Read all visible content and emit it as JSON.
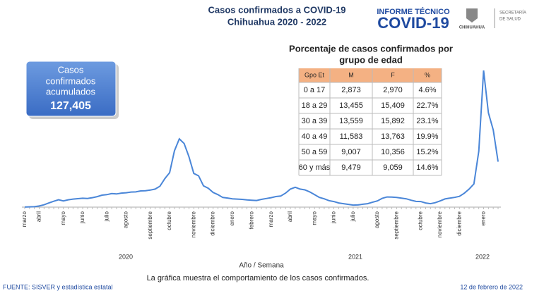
{
  "header": {
    "title": "Casos confirmados a COVID-19",
    "subtitle": "Chihuahua 2020 - 2022",
    "logo_top": "INFORME TÉCNICO",
    "logo_main": "COVID-19",
    "logo_state": "CHIHUAHUA",
    "logo_dept": [
      "SECRETARÍA",
      "DE SALUD"
    ]
  },
  "kpi": {
    "label": [
      "Casos",
      "confirmados",
      "acumulados"
    ],
    "value": "127,405"
  },
  "table": {
    "title": [
      "Porcentaje de casos confirmados por",
      "grupo de edad"
    ],
    "columns": [
      "Gpo Et",
      "M",
      "F",
      "%"
    ],
    "rows": [
      [
        "0 a 17",
        "2,873",
        "2,970",
        "4.6%"
      ],
      [
        "18 a 29",
        "13,455",
        "15,409",
        "22.7%"
      ],
      [
        "30 a 39",
        "13,559",
        "15,892",
        "23.1%"
      ],
      [
        "40 a 49",
        "11,583",
        "13,763",
        "19.9%"
      ],
      [
        "50 a 59",
        "9,007",
        "10,356",
        "15.2%"
      ],
      [
        "60 y más",
        "9,479",
        "9,059",
        "14.6%"
      ]
    ]
  },
  "chart_data": {
    "type": "line",
    "x_label": "Año / Semana",
    "color": "#4a86d8",
    "year_labels": [
      "2020",
      "2021",
      "2022"
    ],
    "categories": [
      "marzo",
      null,
      null,
      "abril",
      null,
      null,
      null,
      null,
      "mayo",
      null,
      null,
      null,
      "junio",
      null,
      null,
      null,
      null,
      "julio",
      null,
      null,
      null,
      "agosto",
      null,
      null,
      null,
      null,
      "septiembre",
      null,
      null,
      null,
      "octubre",
      null,
      null,
      null,
      null,
      "noviembre",
      null,
      null,
      null,
      "diciembre",
      null,
      null,
      null,
      "enero",
      null,
      null,
      null,
      "febrero",
      null,
      null,
      null,
      "marzo",
      null,
      null,
      null,
      "abril",
      null,
      null,
      null,
      null,
      "mayo",
      null,
      null,
      null,
      "junio",
      null,
      null,
      null,
      "julio",
      null,
      null,
      null,
      null,
      "agosto",
      null,
      null,
      null,
      "septiembre",
      null,
      null,
      null,
      null,
      "octubre",
      null,
      null,
      null,
      "noviembre",
      null,
      null,
      null,
      "diciembre",
      null,
      null,
      null,
      null,
      "enero",
      null,
      null,
      null
    ],
    "values": [
      3,
      19,
      31,
      80,
      170,
      300,
      420,
      533,
      450,
      528,
      580,
      613,
      640,
      624,
      680,
      760,
      866,
      900,
      975,
      950,
      1011,
      1040,
      1090,
      1100,
      1170,
      1180,
      1230,
      1300,
      1512,
      2056,
      2490,
      4064,
      4931,
      4596,
      3648,
      2431,
      2259,
      1538,
      1363,
      1062,
      900,
      696,
      656,
      600,
      578,
      560,
      520,
      500,
      480,
      560,
      620,
      680,
      763,
      800,
      1010,
      1300,
      1436,
      1302,
      1244,
      1100,
      900,
      700,
      600,
      470,
      400,
      300,
      250,
      200,
      150,
      160,
      207,
      250,
      350,
      450,
      630,
      735,
      720,
      700,
      650,
      600,
      500,
      414,
      400,
      300,
      250,
      320,
      450,
      590,
      650,
      700,
      780,
      1000,
      1300,
      1680,
      4037,
      9870,
      6810,
      5567,
      3282
    ]
  },
  "footer": {
    "note": "La gráfica muestra el comportamiento de los casos confirmados.",
    "source": "FUENTE: SISVER y estadística estatal",
    "date": "12 de febrero de 2022"
  }
}
